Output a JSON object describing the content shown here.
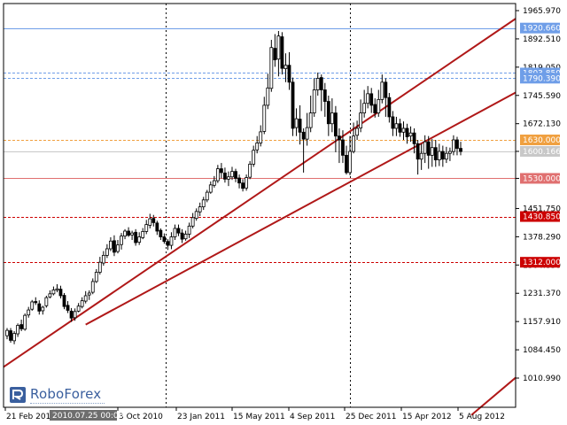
{
  "chart_data": {
    "type": "candlestick",
    "title": "",
    "xlabel": "",
    "ylabel": "",
    "ylim": [
      970,
      1975
    ],
    "y_ticks": [
      "1965.970",
      "1892.510",
      "1819.050",
      "1745.590",
      "1672.130",
      "1600.166",
      "1530.000",
      "1451.750",
      "1378.290",
      "1304.830",
      "1231.370",
      "1157.910",
      "1084.450",
      "1010.990"
    ],
    "y_tick_values": [
      1965.97,
      1892.51,
      1819.05,
      1745.59,
      1672.13,
      1600.166,
      1530.0,
      1451.75,
      1378.29,
      1304.83,
      1231.37,
      1157.91,
      1084.45,
      1010.99
    ],
    "x_ticks": [
      "21 Feb 2010",
      "3 Oct 2010",
      "23 Jan 2011",
      "15 May 2011",
      "4 Sep 2011",
      "25 Dec 2011",
      "15 Apr 2012",
      "5 Aug 2012"
    ],
    "cursor_date": "2010.07.25 00:00",
    "levels": [
      {
        "label": "1920.660",
        "value": 1920.66,
        "style": "solid",
        "color": "#6f9ee8"
      },
      {
        "label": "1803.850",
        "value": 1803.85,
        "style": "dashed",
        "color": "#6f9ee8"
      },
      {
        "label": "1790.390",
        "value": 1790.39,
        "style": "dashed",
        "color": "#6f9ee8"
      },
      {
        "label": "1630.000",
        "value": 1630.0,
        "style": "dashed",
        "color": "#f0a040"
      },
      {
        "label": "1600.166",
        "value": 1600.166,
        "style": "solid",
        "color": "#c8c8c8"
      },
      {
        "label": "1530.000",
        "value": 1530.0,
        "style": "solid",
        "color": "#e07070"
      },
      {
        "label": "1430.850",
        "value": 1430.85,
        "style": "dashed",
        "color": "#cc0000"
      },
      {
        "label": "1312.000",
        "value": 1312.0,
        "style": "dashed",
        "color": "#cc0000"
      }
    ],
    "trendlines": [
      {
        "name": "upper",
        "from": {
          "x": 0,
          "y": 1040
        },
        "to": {
          "x": 196,
          "y": 1945
        }
      },
      {
        "name": "middle",
        "from": {
          "x": 22,
          "y": 1150
        },
        "to": {
          "x": 196,
          "y": 1753
        }
      },
      {
        "name": "lower",
        "from": {
          "x": 130,
          "y": 915
        },
        "to": {
          "x": 196,
          "y": 1012
        }
      }
    ],
    "candles": [
      [
        1121,
        1135,
        1112,
        1141
      ],
      [
        1134,
        1109,
        1103,
        1141
      ],
      [
        1108,
        1127,
        1099,
        1133
      ],
      [
        1126,
        1148,
        1118,
        1153
      ],
      [
        1150,
        1139,
        1133,
        1163
      ],
      [
        1138,
        1174,
        1134,
        1179
      ],
      [
        1175,
        1188,
        1168,
        1196
      ],
      [
        1190,
        1209,
        1186,
        1214
      ],
      [
        1210,
        1207,
        1201,
        1221
      ],
      [
        1204,
        1185,
        1176,
        1213
      ],
      [
        1186,
        1195,
        1176,
        1199
      ],
      [
        1199,
        1220,
        1194,
        1225
      ],
      [
        1222,
        1230,
        1218,
        1239
      ],
      [
        1230,
        1240,
        1226,
        1249
      ],
      [
        1240,
        1243,
        1234,
        1255
      ],
      [
        1242,
        1225,
        1218,
        1251
      ],
      [
        1226,
        1197,
        1190,
        1232
      ],
      [
        1200,
        1187,
        1180,
        1211
      ],
      [
        1185,
        1167,
        1157,
        1193
      ],
      [
        1168,
        1184,
        1160,
        1192
      ],
      [
        1185,
        1198,
        1182,
        1206
      ],
      [
        1197,
        1212,
        1192,
        1221
      ],
      [
        1211,
        1225,
        1205,
        1237
      ],
      [
        1227,
        1232,
        1214,
        1239
      ],
      [
        1234,
        1262,
        1229,
        1270
      ],
      [
        1262,
        1286,
        1258,
        1294
      ],
      [
        1286,
        1312,
        1280,
        1326
      ],
      [
        1310,
        1330,
        1303,
        1341
      ],
      [
        1330,
        1347,
        1323,
        1359
      ],
      [
        1347,
        1367,
        1341,
        1377
      ],
      [
        1368,
        1338,
        1328,
        1382
      ],
      [
        1340,
        1357,
        1335,
        1370
      ],
      [
        1358,
        1380,
        1345,
        1388
      ],
      [
        1380,
        1393,
        1372,
        1398
      ],
      [
        1393,
        1382,
        1378,
        1403
      ],
      [
        1383,
        1388,
        1370,
        1394
      ],
      [
        1390,
        1363,
        1355,
        1398
      ],
      [
        1364,
        1378,
        1357,
        1390
      ],
      [
        1376,
        1392,
        1372,
        1401
      ],
      [
        1392,
        1410,
        1385,
        1422
      ],
      [
        1408,
        1425,
        1400,
        1438
      ],
      [
        1426,
        1415,
        1405,
        1435
      ],
      [
        1414,
        1393,
        1383,
        1420
      ],
      [
        1395,
        1378,
        1370,
        1400
      ],
      [
        1378,
        1366,
        1360,
        1387
      ],
      [
        1366,
        1356,
        1344,
        1372
      ],
      [
        1356,
        1378,
        1346,
        1390
      ],
      [
        1378,
        1400,
        1370,
        1410
      ],
      [
        1400,
        1388,
        1380,
        1410
      ],
      [
        1388,
        1372,
        1362,
        1398
      ],
      [
        1373,
        1385,
        1368,
        1394
      ],
      [
        1385,
        1406,
        1375,
        1415
      ],
      [
        1406,
        1428,
        1400,
        1440
      ],
      [
        1426,
        1444,
        1420,
        1452
      ],
      [
        1443,
        1456,
        1432,
        1467
      ],
      [
        1456,
        1474,
        1448,
        1482
      ],
      [
        1474,
        1494,
        1468,
        1500
      ],
      [
        1494,
        1513,
        1490,
        1522
      ],
      [
        1512,
        1524,
        1506,
        1536
      ],
      [
        1524,
        1555,
        1518,
        1565
      ],
      [
        1555,
        1545,
        1530,
        1570
      ],
      [
        1544,
        1528,
        1519,
        1558
      ],
      [
        1528,
        1534,
        1510,
        1548
      ],
      [
        1534,
        1548,
        1526,
        1560
      ],
      [
        1548,
        1530,
        1520,
        1555
      ],
      [
        1531,
        1518,
        1504,
        1540
      ],
      [
        1518,
        1504,
        1496,
        1528
      ],
      [
        1505,
        1532,
        1498,
        1540
      ],
      [
        1533,
        1567,
        1528,
        1575
      ],
      [
        1567,
        1603,
        1560,
        1615
      ],
      [
        1604,
        1622,
        1595,
        1640
      ],
      [
        1622,
        1651,
        1613,
        1668
      ],
      [
        1652,
        1720,
        1645,
        1742
      ],
      [
        1720,
        1765,
        1710,
        1802
      ],
      [
        1764,
        1870,
        1755,
        1890
      ],
      [
        1868,
        1838,
        1820,
        1905
      ],
      [
        1840,
        1900,
        1795,
        1913
      ],
      [
        1898,
        1816,
        1800,
        1910
      ],
      [
        1815,
        1824,
        1780,
        1855
      ],
      [
        1824,
        1780,
        1760,
        1858
      ],
      [
        1780,
        1660,
        1640,
        1792
      ],
      [
        1662,
        1685,
        1640,
        1712
      ],
      [
        1684,
        1650,
        1618,
        1720
      ],
      [
        1650,
        1632,
        1545,
        1660
      ],
      [
        1632,
        1662,
        1615,
        1700
      ],
      [
        1662,
        1700,
        1650,
        1745
      ],
      [
        1700,
        1760,
        1690,
        1790
      ],
      [
        1760,
        1790,
        1745,
        1805
      ],
      [
        1792,
        1760,
        1705,
        1800
      ],
      [
        1760,
        1730,
        1690,
        1778
      ],
      [
        1730,
        1672,
        1640,
        1745
      ],
      [
        1672,
        1700,
        1650,
        1738
      ],
      [
        1700,
        1640,
        1598,
        1718
      ],
      [
        1640,
        1630,
        1570,
        1660
      ],
      [
        1630,
        1590,
        1570,
        1655
      ],
      [
        1590,
        1545,
        1540,
        1615
      ],
      [
        1545,
        1600,
        1538,
        1640
      ],
      [
        1600,
        1640,
        1595,
        1675
      ],
      [
        1642,
        1660,
        1630,
        1680
      ],
      [
        1661,
        1700,
        1650,
        1735
      ],
      [
        1700,
        1725,
        1688,
        1760
      ],
      [
        1725,
        1750,
        1712,
        1770
      ],
      [
        1750,
        1720,
        1700,
        1765
      ],
      [
        1722,
        1700,
        1688,
        1738
      ],
      [
        1700,
        1735,
        1690,
        1760
      ],
      [
        1735,
        1780,
        1725,
        1800
      ],
      [
        1780,
        1740,
        1690,
        1790
      ],
      [
        1740,
        1690,
        1675,
        1752
      ],
      [
        1690,
        1660,
        1640,
        1705
      ],
      [
        1660,
        1672,
        1640,
        1690
      ],
      [
        1672,
        1650,
        1638,
        1685
      ],
      [
        1650,
        1660,
        1630,
        1678
      ],
      [
        1660,
        1638,
        1620,
        1672
      ],
      [
        1640,
        1648,
        1625,
        1665
      ],
      [
        1648,
        1620,
        1595,
        1660
      ],
      [
        1620,
        1580,
        1540,
        1630
      ],
      [
        1580,
        1595,
        1552,
        1620
      ],
      [
        1595,
        1625,
        1570,
        1642
      ],
      [
        1625,
        1590,
        1555,
        1640
      ],
      [
        1590,
        1610,
        1560,
        1632
      ],
      [
        1610,
        1578,
        1560,
        1630
      ],
      [
        1578,
        1600,
        1562,
        1620
      ],
      [
        1600,
        1580,
        1560,
        1615
      ],
      [
        1580,
        1595,
        1570,
        1612
      ],
      [
        1595,
        1600,
        1575,
        1610
      ],
      [
        1600,
        1630,
        1590,
        1642
      ],
      [
        1630,
        1608,
        1590,
        1638
      ],
      [
        1608,
        1600,
        1590,
        1625
      ]
    ]
  },
  "branding": {
    "logo_text": "RoboForex",
    "logo_icon": "roboforex-logo-icon",
    "logo_color": "#3a5f9e"
  },
  "colors": {
    "background": "#ffffff",
    "axis": "#000000",
    "trendline": "#b01818",
    "period_separator": "#000000",
    "candle": "#000000"
  }
}
